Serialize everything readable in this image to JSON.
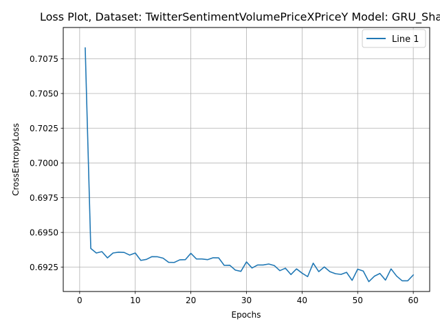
{
  "chart_data": {
    "type": "line",
    "title": "Loss Plot, Dataset: TwitterSentimentVolumePriceXPriceY Model: GRU_Shall",
    "xlabel": "Epochs",
    "ylabel": "CrossEntropyLoss",
    "xlim": [
      -2.95,
      62.95
    ],
    "ylim": [
      0.69075,
      0.70975
    ],
    "xticks": [
      0,
      10,
      20,
      30,
      40,
      50,
      60
    ],
    "xtick_labels": [
      "0",
      "10",
      "20",
      "30",
      "40",
      "50",
      "60"
    ],
    "yticks": [
      0.6925,
      0.695,
      0.6975,
      0.7,
      0.7025,
      0.705,
      0.7075
    ],
    "ytick_labels": [
      "0.6925",
      "0.6950",
      "0.6975",
      "0.7000",
      "0.7025",
      "0.7050",
      "0.7075"
    ],
    "grid": true,
    "legend_position": "top-right",
    "series": [
      {
        "name": "Line 1",
        "color": "#1f77b4",
        "x": [
          1,
          2,
          3,
          4,
          5,
          6,
          7,
          8,
          9,
          10,
          11,
          12,
          13,
          14,
          15,
          16,
          17,
          18,
          19,
          20,
          21,
          22,
          23,
          24,
          25,
          26,
          27,
          28,
          29,
          30,
          31,
          32,
          33,
          34,
          35,
          36,
          37,
          38,
          39,
          40,
          41,
          42,
          43,
          44,
          45,
          46,
          47,
          48,
          49,
          50,
          51,
          52,
          53,
          54,
          55,
          56,
          57,
          58,
          59,
          60
        ],
        "y": [
          0.70828,
          0.69385,
          0.69352,
          0.69362,
          0.69317,
          0.69352,
          0.69358,
          0.69356,
          0.69337,
          0.69352,
          0.69299,
          0.69306,
          0.69326,
          0.69325,
          0.69315,
          0.69285,
          0.69284,
          0.69303,
          0.69304,
          0.6935,
          0.69309,
          0.69309,
          0.69304,
          0.69318,
          0.69317,
          0.69263,
          0.69264,
          0.69229,
          0.6922,
          0.69288,
          0.69244,
          0.69266,
          0.69266,
          0.69273,
          0.69262,
          0.69225,
          0.69243,
          0.69197,
          0.69238,
          0.69207,
          0.69182,
          0.69279,
          0.69218,
          0.69252,
          0.69218,
          0.69203,
          0.69198,
          0.69213,
          0.69155,
          0.69236,
          0.69222,
          0.69146,
          0.69185,
          0.69205,
          0.69157,
          0.69238,
          0.69186,
          0.69152,
          0.69152,
          0.69194
        ]
      }
    ]
  }
}
